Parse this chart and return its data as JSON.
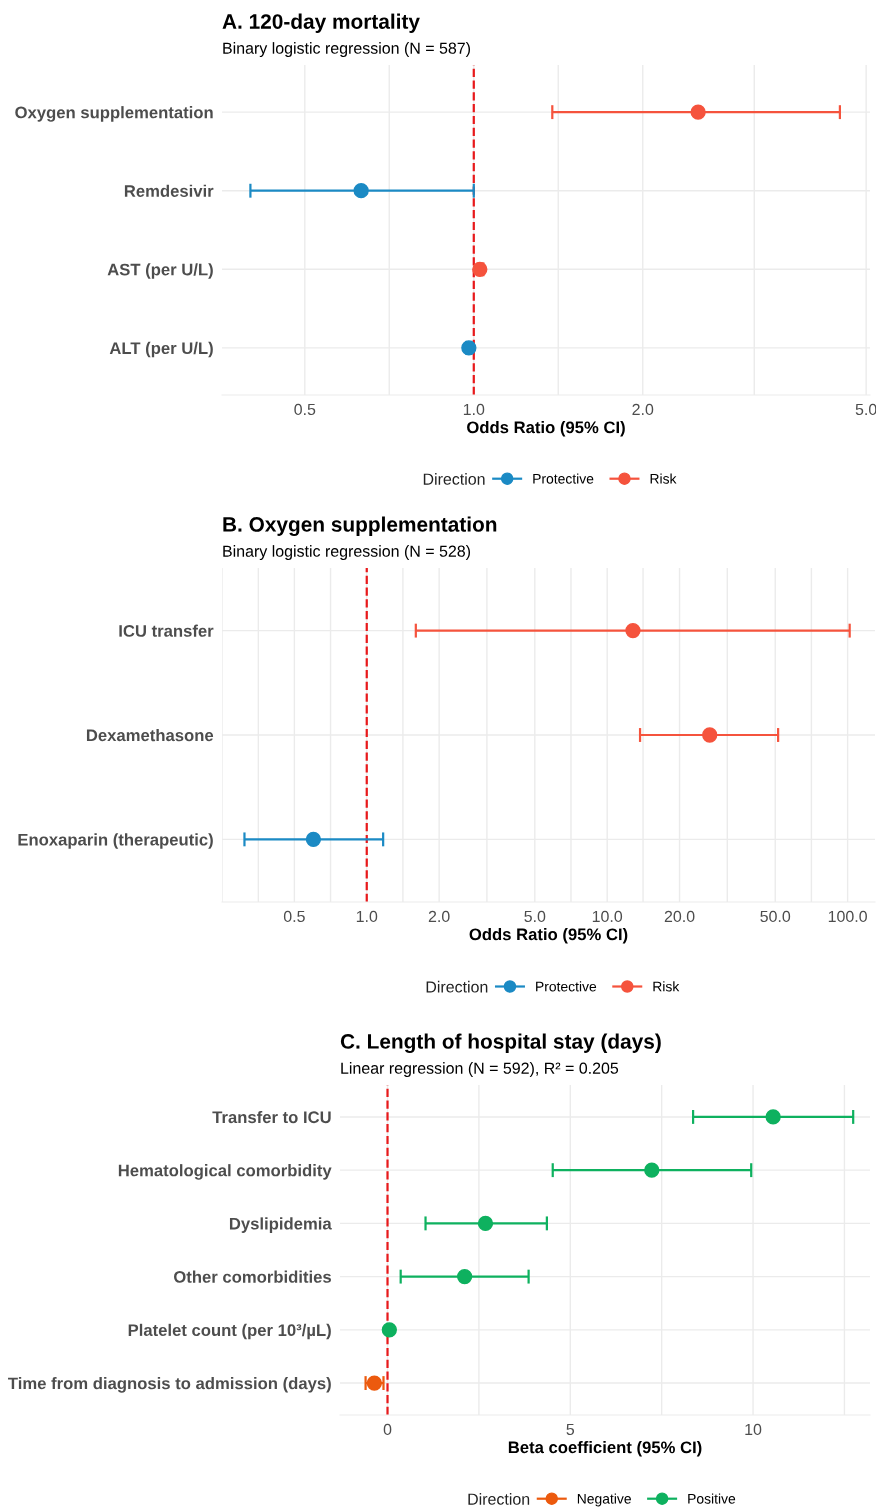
{
  "chart_data": [
    {
      "type": "scatter",
      "orientation": "horizontal",
      "title": "A. 120-day mortality",
      "subtitle": "Binary logistic regression (N = 587)",
      "xlabel": "Odds Ratio (95% CI)",
      "legend_title": "Direction",
      "categories": [
        "Oxygen supplementation",
        "Remdesivir",
        "AST (per U/L)",
        "ALT (per U/L)"
      ],
      "series": [
        {
          "name": "Protective",
          "color": "#1b8ac4",
          "values": [
            null,
            0.63,
            null,
            0.98
          ],
          "errors": [
            null,
            [
              0.4,
              1.0
            ],
            null,
            [
              0.97,
              0.99
            ]
          ]
        },
        {
          "name": "Risk",
          "color": "#f5533d",
          "values": [
            2.51,
            null,
            1.025,
            null
          ],
          "errors": [
            [
              1.38,
              4.49
            ],
            null,
            [
              1.025,
              1.04
            ],
            null
          ]
        }
      ],
      "log": "x",
      "xlim": [
        0.356,
        5.08
      ],
      "xticks": [
        0.5,
        {
          "value": 0.707,
          "label": null
        },
        {
          "value": 1,
          "label": "1.0"
        },
        {
          "value": 1.414,
          "label": null
        },
        {
          "value": 2,
          "label": "2.0"
        },
        {
          "value": 3.16,
          "label": null
        },
        {
          "value": 5,
          "label": "5.0"
        }
      ],
      "ref_lines": [
        {
          "axis": "x",
          "value": 1,
          "color": "#e8191b",
          "line_style": "dashed"
        }
      ],
      "grid": true,
      "legend": "bottom",
      "marker": "circle"
    },
    {
      "type": "scatter",
      "orientation": "horizontal",
      "title": "B. Oxygen supplementation",
      "subtitle": "Binary logistic regression (N = 528)",
      "xlabel": "Odds Ratio (95% CI)",
      "legend_title": "Direction",
      "categories": [
        "ICU transfer",
        "Dexamethasone",
        "Enoxaparin (therapeutic)"
      ],
      "series": [
        {
          "name": "Protective",
          "color": "#1b8ac4",
          "values": [
            null,
            null,
            0.6
          ],
          "errors": [
            null,
            null,
            [
              0.31,
              1.17
            ]
          ]
        },
        {
          "name": "Risk",
          "color": "#f5533d",
          "values": [
            12.8,
            26.7,
            null
          ],
          "errors": [
            [
              1.6,
              102
            ],
            [
              13.7,
              51.4
            ],
            null
          ]
        }
      ],
      "log": "x",
      "xlim": [
        0.25,
        130
      ],
      "xticks": [
        {
          "value": 0.25,
          "label": null
        },
        {
          "value": 0.354,
          "label": null
        },
        0.5,
        {
          "value": 0.707,
          "label": null
        },
        {
          "value": 1,
          "label": "1.0"
        },
        {
          "value": 1.414,
          "label": null
        },
        {
          "value": 2,
          "label": "2.0"
        },
        {
          "value": 3.16,
          "label": null
        },
        {
          "value": 5,
          "label": "5.0"
        },
        {
          "value": 7.07,
          "label": null
        },
        {
          "value": 10,
          "label": "10.0"
        },
        {
          "value": 14.1,
          "label": null
        },
        {
          "value": 20,
          "label": "20.0"
        },
        {
          "value": 31.6,
          "label": null
        },
        {
          "value": 50,
          "label": "50.0"
        },
        {
          "value": 70.7,
          "label": null
        },
        {
          "value": 100,
          "label": "100.0"
        }
      ],
      "ref_lines": [
        {
          "axis": "x",
          "value": 1,
          "color": "#e8191b",
          "line_style": "dashed"
        }
      ],
      "grid": true,
      "legend": "bottom",
      "marker": "circle"
    },
    {
      "type": "scatter",
      "orientation": "horizontal",
      "title": "C. Length of hospital stay (days)",
      "subtitle": "Linear regression (N = 592), R² = 0.205",
      "xlabel": "Beta coefficient (95% CI)",
      "legend_title": "Direction",
      "categories": [
        "Transfer to ICU",
        "Hematological comorbidity",
        "Dyslipidemia",
        "Other comorbidities",
        "Platelet count (per 10³/µL)",
        "Time from diagnosis to admission (days)"
      ],
      "series": [
        {
          "name": "Negative",
          "color": "#ec5a0e",
          "values": [
            null,
            null,
            null,
            null,
            null,
            -0.36
          ],
          "errors": [
            null,
            null,
            null,
            null,
            null,
            [
              -0.6,
              -0.11
            ]
          ]
        },
        {
          "name": "Positive",
          "color": "#0eb15f",
          "values": [
            10.55,
            7.23,
            2.68,
            2.11,
            0.05,
            null
          ],
          "errors": [
            [
              8.36,
              12.74
            ],
            [
              4.52,
              9.95
            ],
            [
              1.04,
              4.36
            ],
            [
              0.36,
              3.86
            ],
            [
              0.0,
              0.1
            ],
            null
          ]
        }
      ],
      "xlim": [
        -1.3,
        13.2
      ],
      "xticks": [
        0,
        {
          "value": 2.5,
          "label": null
        },
        5,
        {
          "value": 7.5,
          "label": null
        },
        10,
        {
          "value": 12.5,
          "label": null
        }
      ],
      "ref_lines": [
        {
          "axis": "x",
          "value": 0,
          "color": "#e8191b",
          "line_style": "dashed"
        }
      ],
      "grid": true,
      "legend": "bottom",
      "marker": "circle"
    }
  ]
}
